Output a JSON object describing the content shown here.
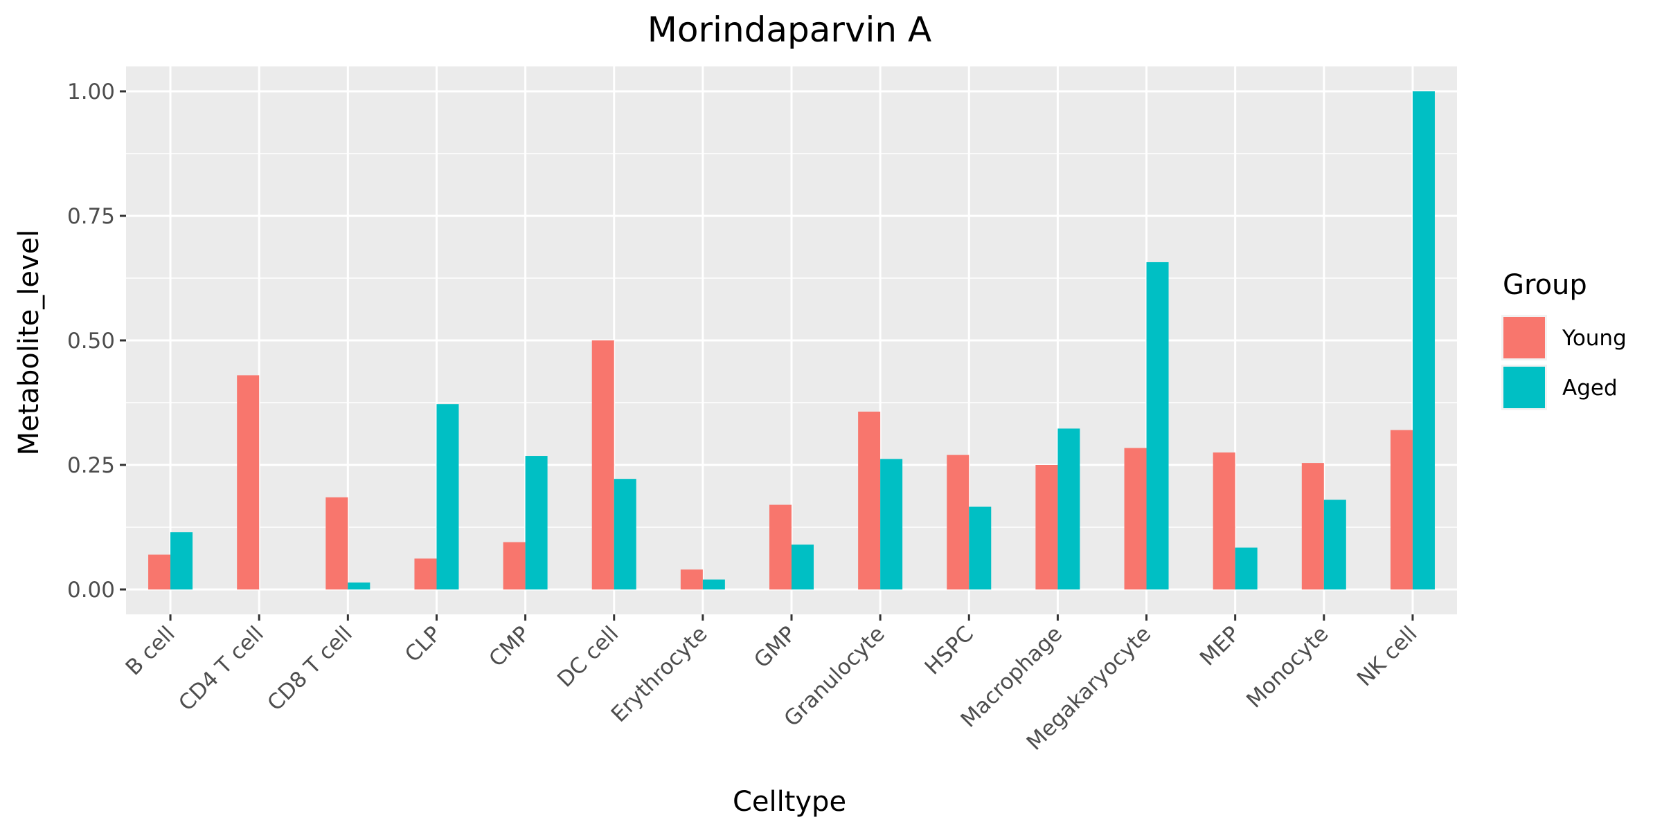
{
  "chart_data": {
    "type": "bar",
    "title": "Morindaparvin A",
    "xlabel": "Celltype",
    "ylabel": "Metabolite_level",
    "categories": [
      "B cell",
      "CD4 T cell",
      "CD8 T cell",
      "CLP",
      "CMP",
      "DC cell",
      "Erythrocyte",
      "GMP",
      "Granulocyte",
      "HSPC",
      "Macrophage",
      "Megakaryocyte",
      "MEP",
      "Monocyte",
      "NK cell"
    ],
    "series": [
      {
        "name": "Young",
        "color": "#F8766D",
        "values": [
          0.07,
          0.43,
          0.185,
          0.062,
          0.095,
          0.5,
          0.04,
          0.17,
          0.357,
          0.27,
          0.25,
          0.284,
          0.275,
          0.254,
          0.32
        ]
      },
      {
        "name": "Aged",
        "color": "#00BFC4",
        "values": [
          0.115,
          0.0,
          0.014,
          0.372,
          0.268,
          0.222,
          0.02,
          0.09,
          0.262,
          0.166,
          0.323,
          0.657,
          0.084,
          0.18,
          1.0
        ]
      }
    ],
    "ylim": [
      -0.05,
      1.05
    ],
    "yticks": [
      0.0,
      0.25,
      0.5,
      0.75,
      1.0
    ],
    "ytick_labels": [
      "0.00",
      "0.25",
      "0.50",
      "0.75",
      "1.00"
    ],
    "grid": true,
    "legend": {
      "title": "Group",
      "position": "right"
    },
    "panel_background": "#EBEBEB",
    "grid_color": "#FFFFFF"
  }
}
